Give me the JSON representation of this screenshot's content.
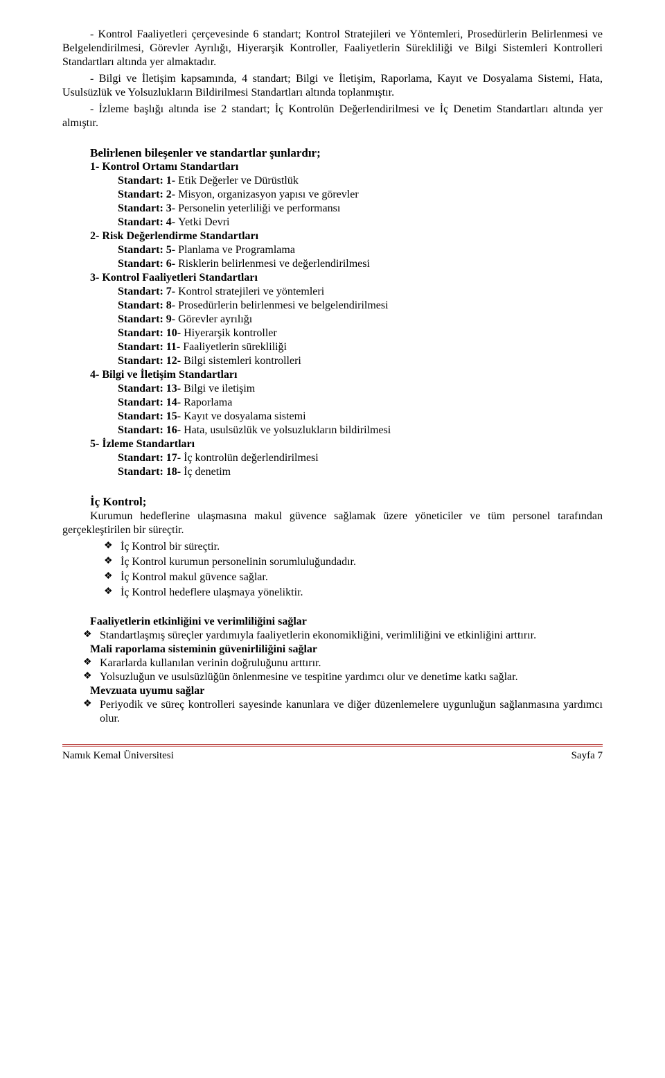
{
  "paragraph1": "- Kontrol Faaliyetleri çerçevesinde 6 standart; Kontrol Stratejileri ve Yöntemleri, Prosedürlerin Belirlenmesi ve Belgelendirilmesi, Görevler Ayrılığı, Hiyerarşik Kontroller, Faaliyetlerin Sürekliliği ve Bilgi Sistemleri Kontrolleri Standartları altında yer almaktadır.",
  "paragraph2": "- Bilgi ve İletişim kapsamında, 4 standart; Bilgi ve İletişim, Raporlama, Kayıt ve Dosyalama Sistemi, Hata, Usulsüzlük ve Yolsuzlukların Bildirilmesi Standartları altında toplanmıştır.",
  "paragraph3": "- İzleme başlığı altında ise 2 standart; İç Kontrolün Değerlendirilmesi ve İç Denetim Standartları altında yer almıştır.",
  "componentsHeading": "Belirlenen bileşenler ve standartlar şunlardır;",
  "groups": [
    {
      "num": "1-",
      "title": "Kontrol Ortamı Standartları",
      "items": [
        {
          "lbl": "Standart: 1-",
          "txt": "Etik Değerler ve Dürüstlük"
        },
        {
          "lbl": "Standart: 2-",
          "txt": "Misyon, organizasyon yapısı ve görevler"
        },
        {
          "lbl": "Standart: 3-",
          "txt": "Personelin yeterliliği ve performansı"
        },
        {
          "lbl": "Standart: 4-",
          "txt": "Yetki Devri"
        }
      ]
    },
    {
      "num": "2-",
      "title": "Risk Değerlendirme Standartları",
      "items": [
        {
          "lbl": "Standart: 5-",
          "txt": "Planlama ve Programlama"
        },
        {
          "lbl": "Standart: 6-",
          "txt": "Risklerin belirlenmesi ve değerlendirilmesi"
        }
      ]
    },
    {
      "num": "3-",
      "title": "Kontrol Faaliyetleri Standartları",
      "items": [
        {
          "lbl": "Standart: 7-",
          "txt": "Kontrol stratejileri ve yöntemleri"
        },
        {
          "lbl": "Standart: 8-",
          "txt": "Prosedürlerin belirlenmesi ve belgelendirilmesi"
        },
        {
          "lbl": "Standart: 9-",
          "txt": "Görevler ayrılığı"
        },
        {
          "lbl": "Standart: 10-",
          "txt": "Hiyerarşik kontroller"
        },
        {
          "lbl": "Standart: 11-",
          "txt": "Faaliyetlerin sürekliliği"
        },
        {
          "lbl": "Standart: 12-",
          "txt": "Bilgi sistemleri kontrolleri"
        }
      ]
    },
    {
      "num": "4-",
      "title": "Bilgi ve İletişim Standartları",
      "items": [
        {
          "lbl": "Standart: 13-",
          "txt": "Bilgi ve iletişim"
        },
        {
          "lbl": "Standart: 14-",
          "txt": "Raporlama"
        },
        {
          "lbl": "Standart: 15-",
          "txt": "Kayıt ve dosyalama sistemi"
        },
        {
          "lbl": "Standart: 16-",
          "txt": "Hata, usulsüzlük ve yolsuzlukların bildirilmesi"
        }
      ]
    },
    {
      "num": "5-",
      "title": "İzleme Standartları",
      "items": [
        {
          "lbl": "Standart: 17-",
          "txt": "İç kontrolün değerlendirilmesi"
        },
        {
          "lbl": "Standart: 18-",
          "txt": "İç denetim"
        }
      ]
    }
  ],
  "icHeading": "İç Kontrol;",
  "icPara": "Kurumun hedeflerine ulaşmasına makul güvence sağlamak üzere yöneticiler ve tüm personel tarafından gerçekleştirilen bir süreçtir.",
  "icBullets": [
    "İç Kontrol bir süreçtir.",
    "İç Kontrol kurumun personelinin sorumluluğundadır.",
    "İç Kontrol makul güvence sağlar.",
    "İç Kontrol hedeflere ulaşmaya yöneliktir."
  ],
  "sub": [
    {
      "title": "Faaliyetlerin etkinliğini ve verimliliğini sağlar",
      "bullets": [
        "Standartlaşmış süreçler yardımıyla faaliyetlerin ekonomikliğini, verimliliğini ve etkinliğini arttırır."
      ]
    },
    {
      "title": "Mali raporlama sisteminin güvenirliliğini sağlar",
      "bullets": [
        "Kararlarda kullanılan verinin doğruluğunu arttırır.",
        "Yolsuzluğun ve usulsüzlüğün önlenmesine ve tespitine yardımcı olur ve denetime katkı sağlar."
      ]
    },
    {
      "title": "Mevzuata uyumu sağlar",
      "bullets": [
        "Periyodik ve süreç kontrolleri sayesinde kanunlara ve diğer düzenlemelere uygunluğun sağlanmasına yardımcı olur."
      ]
    }
  ],
  "footerLeft": "Namık Kemal Üniversitesi",
  "footerRight": "Sayfa 7",
  "bulletGlyph": "❖"
}
